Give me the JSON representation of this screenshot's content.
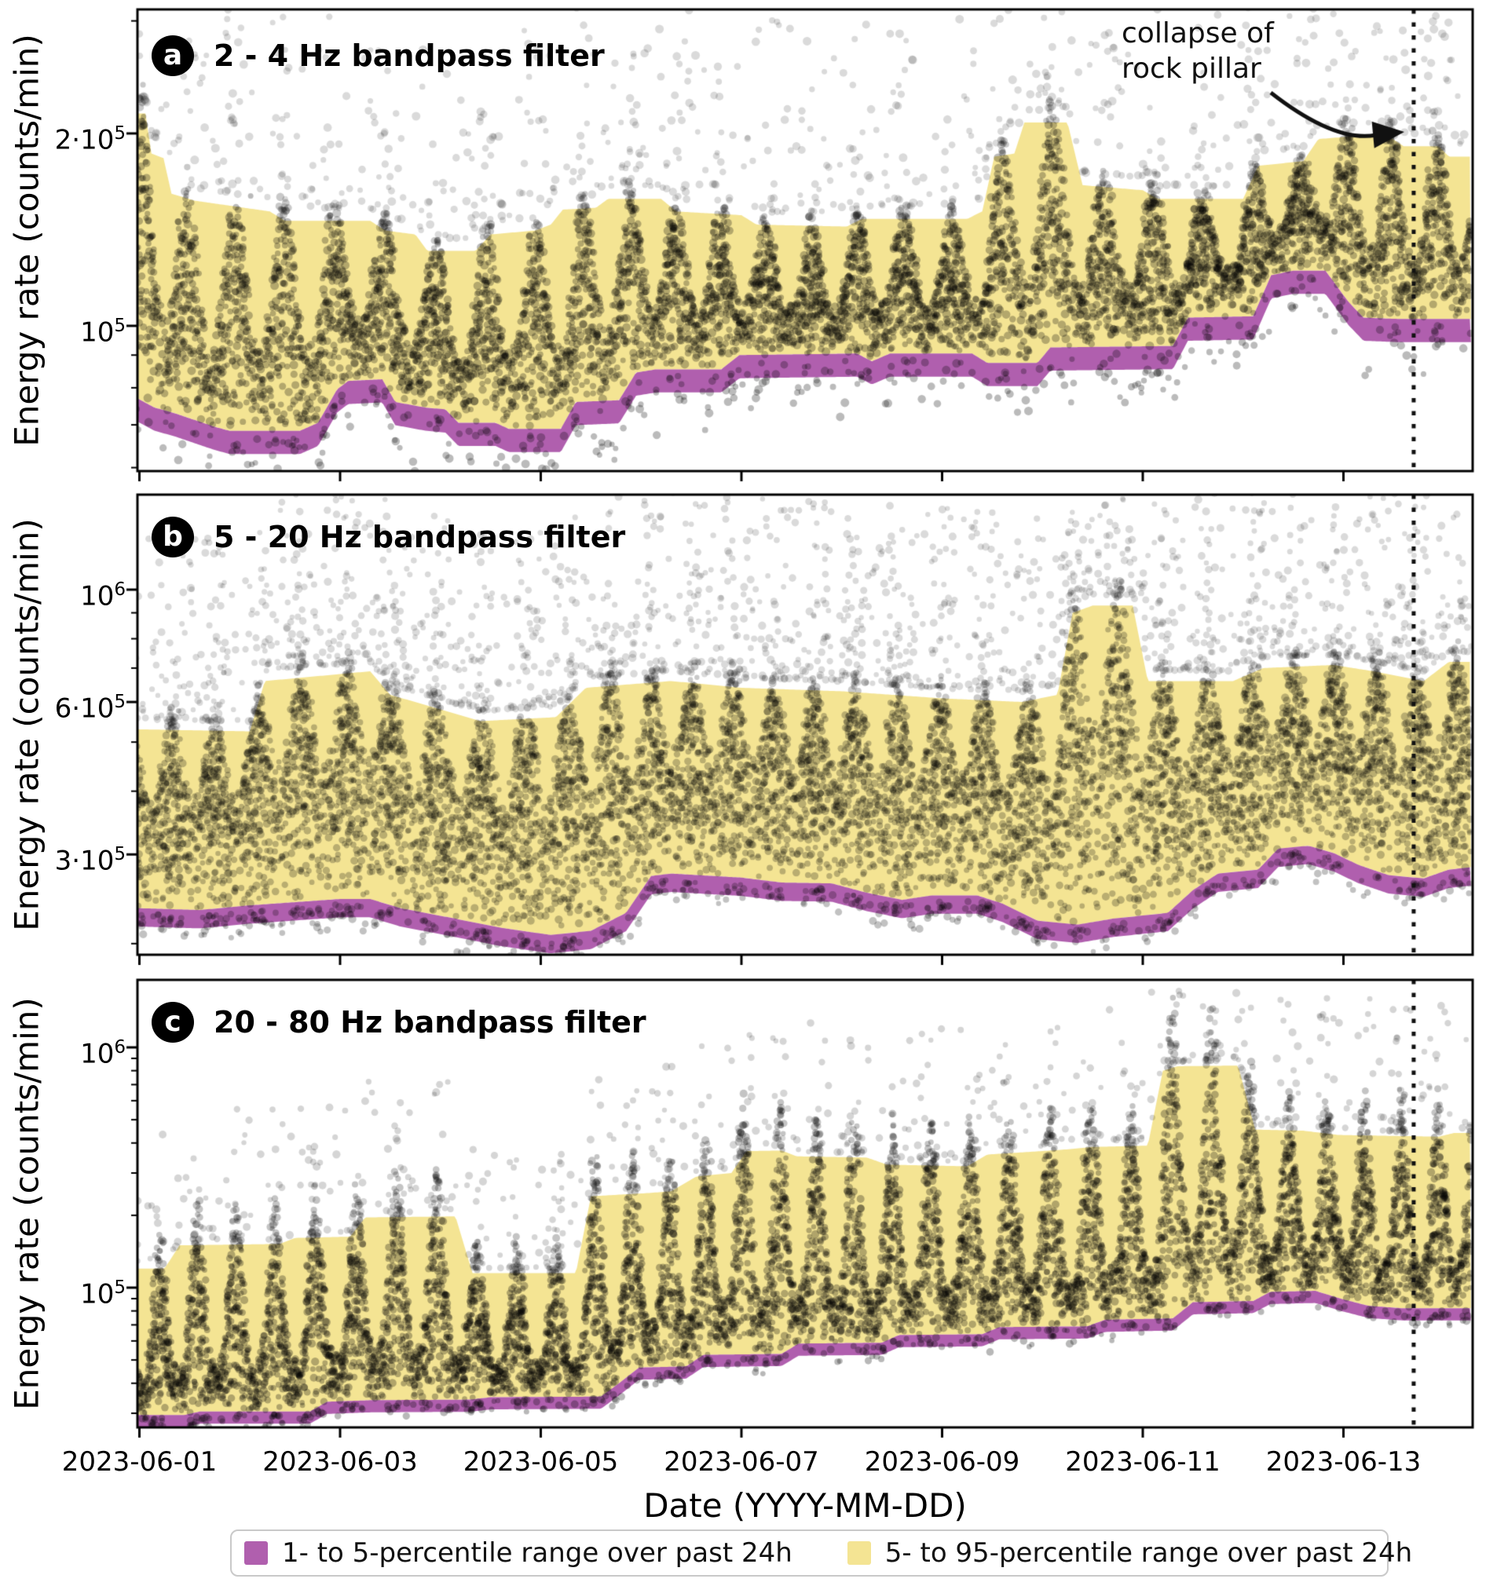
{
  "figure": {
    "ylabel": "Energy rate (counts/min)",
    "xlabel": "Date (YYYY-MM-DD)",
    "annotation": {
      "line1": "collapse of",
      "line2": "rock pillar"
    }
  },
  "legend": {
    "items": [
      {
        "label": "1- to 5-percentile range over past 24h",
        "color": "#b05fae"
      },
      {
        "label": "5- to 95-percentile range over past 24h",
        "color": "#f4e493"
      }
    ]
  },
  "chart_data": {
    "type": "scatter",
    "description": "Seismic energy rate vs date, log y-scale; gray/olive dots are per-minute energy rates, purple band is 1-5 percentile of past 24h, yellow band is 5-95 percentile of past 24h; dotted vertical line marks collapse of rock pillar",
    "colors": {
      "yellow": "#f4e493",
      "purple": "#b05fae",
      "dot": "#565656",
      "event_line": "#111111"
    },
    "x": {
      "label": "Date (YYYY-MM-DD)",
      "range_days": [
        0.98,
        14.27
      ],
      "ticks": [
        {
          "t": 1,
          "label": "2023-06-01"
        },
        {
          "t": 3,
          "label": "2023-06-03"
        },
        {
          "t": 5,
          "label": "2023-06-05"
        },
        {
          "t": 7,
          "label": "2023-06-07"
        },
        {
          "t": 9,
          "label": "2023-06-09"
        },
        {
          "t": 11,
          "label": "2023-06-11"
        },
        {
          "t": 13,
          "label": "2023-06-13"
        }
      ]
    },
    "event": {
      "t": 13.7,
      "label": "collapse of rock pillar"
    },
    "panels": [
      {
        "badge": "a",
        "title": "2 - 4 Hz bandpass filter",
        "ylim": [
          59000,
          313000
        ],
        "yticks_major": [
          {
            "v": 200000,
            "m": "2·10",
            "e": "5"
          },
          {
            "v": 100000,
            "m": "10",
            "e": "5"
          }
        ],
        "yticks_minor": [
          300000,
          90000,
          80000,
          70000,
          60000
        ],
        "p1_ratio": 0.92,
        "p5": [
          [
            0.98,
            77000
          ],
          [
            1.15,
            74500
          ],
          [
            1.35,
            73000
          ],
          [
            1.75,
            69500
          ],
          [
            1.9,
            68500
          ],
          [
            2.6,
            68500
          ],
          [
            2.78,
            70500
          ],
          [
            2.97,
            79500
          ],
          [
            3.08,
            82000
          ],
          [
            3.42,
            82500
          ],
          [
            3.55,
            76000
          ],
          [
            3.85,
            74500
          ],
          [
            4.05,
            74000
          ],
          [
            4.18,
            70500
          ],
          [
            4.55,
            70500
          ],
          [
            4.68,
            69000
          ],
          [
            5.2,
            69000
          ],
          [
            5.35,
            76000
          ],
          [
            5.78,
            76500
          ],
          [
            5.95,
            84500
          ],
          [
            6.15,
            85500
          ],
          [
            6.8,
            85500
          ],
          [
            6.98,
            90000
          ],
          [
            8.15,
            90500
          ],
          [
            8.3,
            88000
          ],
          [
            8.48,
            90500
          ],
          [
            9.3,
            90500
          ],
          [
            9.45,
            87500
          ],
          [
            9.95,
            87500
          ],
          [
            10.08,
            92500
          ],
          [
            11.3,
            93000
          ],
          [
            11.45,
            103000
          ],
          [
            12.1,
            103500
          ],
          [
            12.28,
            120000
          ],
          [
            12.5,
            122000
          ],
          [
            12.82,
            122000
          ],
          [
            13.05,
            109000
          ],
          [
            13.2,
            103000
          ],
          [
            13.55,
            102500
          ],
          [
            14.27,
            102500
          ]
        ],
        "p95": [
          [
            0.98,
            215000
          ],
          [
            1.06,
            215000
          ],
          [
            1.12,
            186000
          ],
          [
            1.24,
            183000
          ],
          [
            1.32,
            161000
          ],
          [
            1.55,
            157000
          ],
          [
            2.3,
            151000
          ],
          [
            2.45,
            146000
          ],
          [
            3.3,
            146000
          ],
          [
            3.45,
            141000
          ],
          [
            3.75,
            139000
          ],
          [
            3.87,
            131000
          ],
          [
            4.35,
            131000
          ],
          [
            4.5,
            139000
          ],
          [
            4.95,
            141000
          ],
          [
            5.1,
            144000
          ],
          [
            5.22,
            152000
          ],
          [
            5.55,
            153000
          ],
          [
            5.67,
            158000
          ],
          [
            6.2,
            158000
          ],
          [
            6.35,
            151000
          ],
          [
            7.0,
            149000
          ],
          [
            7.15,
            144000
          ],
          [
            8.05,
            143000
          ],
          [
            8.2,
            147000
          ],
          [
            9.25,
            147000
          ],
          [
            9.4,
            151000
          ],
          [
            9.52,
            184000
          ],
          [
            9.72,
            186000
          ],
          [
            9.82,
            208000
          ],
          [
            10.25,
            208000
          ],
          [
            10.4,
            166000
          ],
          [
            11.0,
            163000
          ],
          [
            11.15,
            158000
          ],
          [
            12.0,
            158000
          ],
          [
            12.15,
            178000
          ],
          [
            12.6,
            181000
          ],
          [
            12.75,
            196000
          ],
          [
            13.1,
            198000
          ],
          [
            13.45,
            198000
          ],
          [
            13.6,
            191000
          ],
          [
            13.95,
            191000
          ],
          [
            14.05,
            184000
          ],
          [
            14.27,
            184000
          ]
        ],
        "scatter": {
          "seed": 7,
          "freq": 2.1,
          "base_n": 9,
          "up_base": 0.32,
          "up_amp": 0.74,
          "up_pow": 1.25,
          "out_frac": 0.1,
          "out_dec": 0.3,
          "under_frac": 0.05,
          "under_dec": 0.1,
          "alpha": 0.4,
          "out_alpha": 0.22,
          "dot_r": 4.3
        }
      },
      {
        "badge": "b",
        "title": "5 - 20 Hz bandpass filter",
        "ylim": [
          189000,
          1540000
        ],
        "yticks_major": [
          {
            "v": 1000000,
            "m": "10",
            "e": "6"
          },
          {
            "v": 600000,
            "m": "6·10",
            "e": "5"
          },
          {
            "v": 300000,
            "m": "3·10",
            "e": "5"
          }
        ],
        "yticks_minor": [
          900000,
          800000,
          700000,
          500000,
          400000,
          200000
        ],
        "p1_ratio": 0.92,
        "p5": [
          [
            0.98,
            235000
          ],
          [
            1.6,
            233000
          ],
          [
            2.1,
            238000
          ],
          [
            3.0,
            245000
          ],
          [
            3.3,
            245000
          ],
          [
            3.6,
            235000
          ],
          [
            4.1,
            225000
          ],
          [
            4.6,
            215000
          ],
          [
            5.1,
            208000
          ],
          [
            5.5,
            212000
          ],
          [
            5.85,
            230000
          ],
          [
            6.1,
            272000
          ],
          [
            6.3,
            275000
          ],
          [
            7.0,
            270000
          ],
          [
            7.4,
            264000
          ],
          [
            7.9,
            263000
          ],
          [
            8.25,
            252000
          ],
          [
            8.6,
            244000
          ],
          [
            8.9,
            249000
          ],
          [
            9.35,
            249000
          ],
          [
            9.6,
            240000
          ],
          [
            9.95,
            222000
          ],
          [
            10.35,
            218000
          ],
          [
            10.7,
            224000
          ],
          [
            11.25,
            230000
          ],
          [
            11.5,
            255000
          ],
          [
            11.75,
            275000
          ],
          [
            12.15,
            280000
          ],
          [
            12.35,
            308000
          ],
          [
            12.65,
            312000
          ],
          [
            12.9,
            302000
          ],
          [
            13.15,
            286000
          ],
          [
            13.45,
            273000
          ],
          [
            13.8,
            269000
          ],
          [
            14.05,
            280000
          ],
          [
            14.27,
            283000
          ]
        ],
        "p95": [
          [
            0.98,
            530000
          ],
          [
            2.1,
            525000
          ],
          [
            2.25,
            660000
          ],
          [
            3.3,
            690000
          ],
          [
            3.5,
            620000
          ],
          [
            4.4,
            550000
          ],
          [
            5.15,
            560000
          ],
          [
            5.45,
            640000
          ],
          [
            6.3,
            660000
          ],
          [
            7.0,
            640000
          ],
          [
            8.0,
            630000
          ],
          [
            9.0,
            610000
          ],
          [
            9.8,
            600000
          ],
          [
            10.15,
            620000
          ],
          [
            10.3,
            900000
          ],
          [
            10.5,
            930000
          ],
          [
            10.9,
            930000
          ],
          [
            11.05,
            660000
          ],
          [
            11.9,
            660000
          ],
          [
            12.2,
            700000
          ],
          [
            12.9,
            710000
          ],
          [
            13.3,
            690000
          ],
          [
            13.8,
            660000
          ],
          [
            14.05,
            720000
          ],
          [
            14.27,
            720000
          ]
        ],
        "scatter": {
          "seed": 19,
          "freq": 2.35,
          "base_n": 13,
          "up_base": 0.55,
          "up_amp": 0.48,
          "up_pow": 1.0,
          "out_frac": 0.17,
          "out_dec": 0.36,
          "under_frac": 0.05,
          "under_dec": 0.06,
          "alpha": 0.36,
          "out_alpha": 0.22,
          "dot_r": 4.0
        }
      },
      {
        "badge": "c",
        "title": "20 - 80 Hz bandpass filter",
        "ylim": [
          26200,
          1910000
        ],
        "yticks_major": [
          {
            "v": 1000000,
            "m": "10",
            "e": "6"
          },
          {
            "v": 100000,
            "m": "10",
            "e": "5"
          }
        ],
        "yticks_minor": [
          900000,
          800000,
          700000,
          600000,
          500000,
          400000,
          300000,
          200000,
          90000,
          80000,
          70000,
          60000,
          50000,
          40000,
          30000
        ],
        "p1_ratio": 0.89,
        "p5": [
          [
            0.98,
            29500
          ],
          [
            1.45,
            29500
          ],
          [
            1.6,
            30500
          ],
          [
            2.7,
            30500
          ],
          [
            2.87,
            33500
          ],
          [
            3.3,
            34000
          ],
          [
            4.3,
            34200
          ],
          [
            4.5,
            35000
          ],
          [
            5.6,
            35200
          ],
          [
            5.78,
            40000
          ],
          [
            5.98,
            46500
          ],
          [
            6.45,
            47000
          ],
          [
            6.62,
            52500
          ],
          [
            7.4,
            53000
          ],
          [
            7.57,
            58500
          ],
          [
            8.4,
            59000
          ],
          [
            8.57,
            63500
          ],
          [
            9.4,
            64000
          ],
          [
            9.57,
            68500
          ],
          [
            10.45,
            69000
          ],
          [
            10.62,
            73500
          ],
          [
            11.3,
            74500
          ],
          [
            11.5,
            87000
          ],
          [
            12.1,
            88000
          ],
          [
            12.27,
            96000
          ],
          [
            12.72,
            97000
          ],
          [
            12.97,
            90000
          ],
          [
            13.25,
            84000
          ],
          [
            13.6,
            82000
          ],
          [
            14.27,
            82000
          ]
        ],
        "p95": [
          [
            0.98,
            120000
          ],
          [
            1.25,
            120000
          ],
          [
            1.4,
            150000
          ],
          [
            2.4,
            152000
          ],
          [
            2.55,
            161000
          ],
          [
            3.1,
            163000
          ],
          [
            3.25,
            196000
          ],
          [
            4.15,
            198000
          ],
          [
            4.32,
            115000
          ],
          [
            5.35,
            115000
          ],
          [
            5.5,
            240000
          ],
          [
            6.1,
            248000
          ],
          [
            6.3,
            252000
          ],
          [
            6.55,
            290000
          ],
          [
            6.9,
            300000
          ],
          [
            7.05,
            370000
          ],
          [
            7.4,
            372000
          ],
          [
            7.55,
            352000
          ],
          [
            8.25,
            348000
          ],
          [
            8.45,
            325000
          ],
          [
            9.25,
            320000
          ],
          [
            9.45,
            358000
          ],
          [
            10.2,
            375000
          ],
          [
            10.5,
            385000
          ],
          [
            11.05,
            390000
          ],
          [
            11.2,
            800000
          ],
          [
            11.35,
            835000
          ],
          [
            11.95,
            840000
          ],
          [
            12.12,
            455000
          ],
          [
            12.6,
            450000
          ],
          [
            12.95,
            432000
          ],
          [
            13.5,
            428000
          ],
          [
            13.95,
            425000
          ],
          [
            14.1,
            440000
          ],
          [
            14.27,
            440000
          ]
        ],
        "scatter": {
          "seed": 31,
          "freq": 2.6,
          "base_n": 11,
          "up_base": 0.22,
          "up_amp": 1.0,
          "up_pow": 1.6,
          "out_frac": 0.07,
          "out_dec": 0.55,
          "under_frac": 0.04,
          "under_dec": 0.08,
          "alpha": 0.42,
          "out_alpha": 0.25,
          "dot_r": 4.0
        }
      }
    ]
  }
}
